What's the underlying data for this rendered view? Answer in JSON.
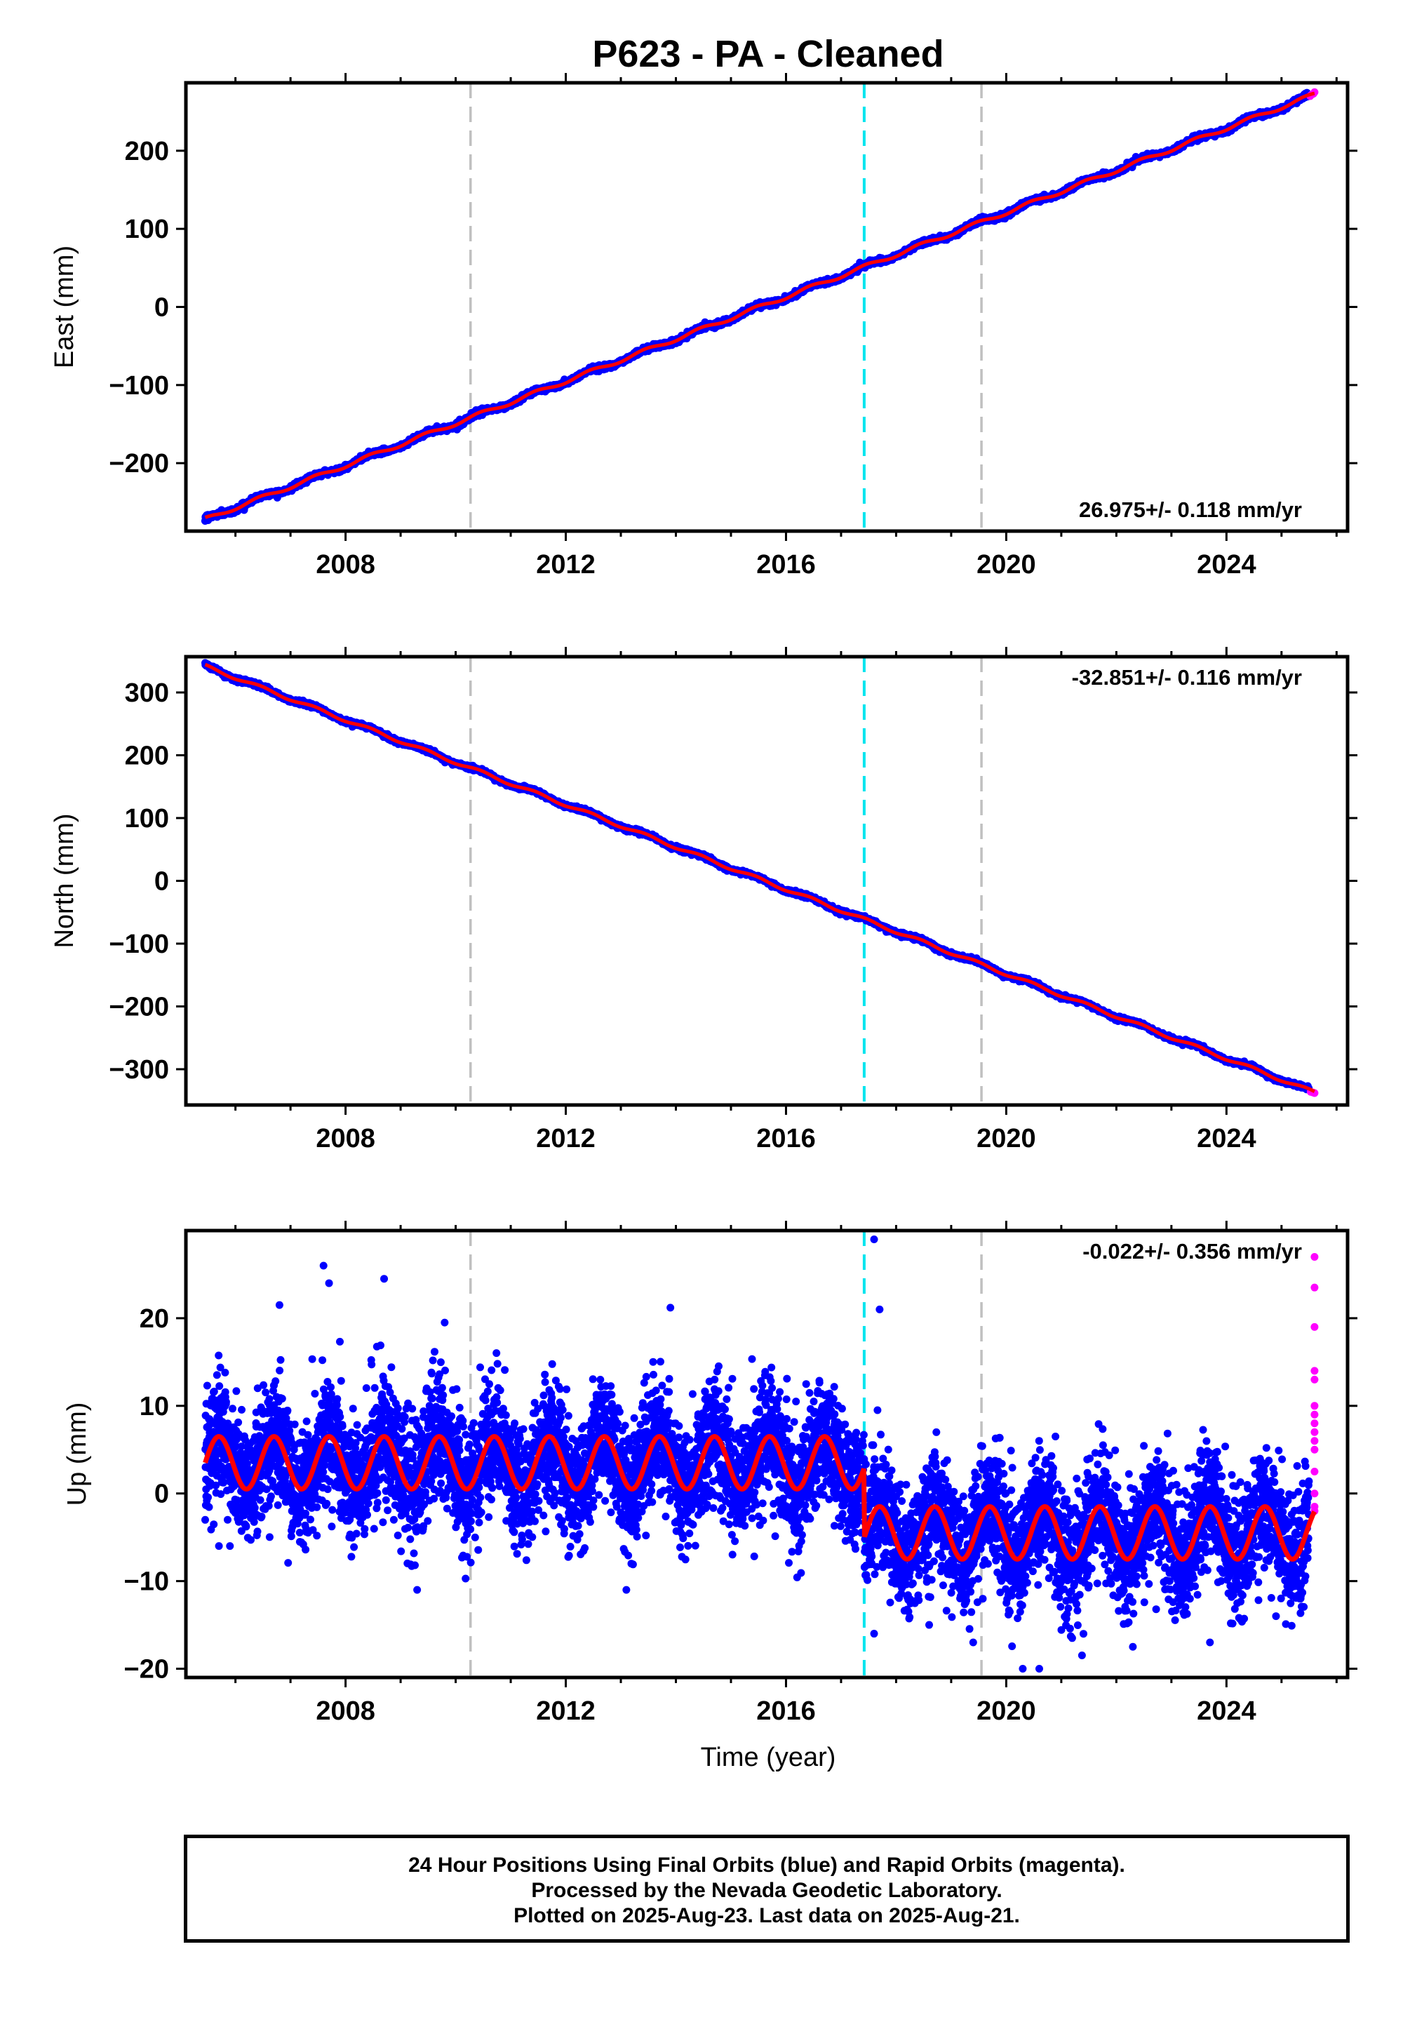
{
  "title": "P623  - PA - Cleaned",
  "xlabel": "Time (year)",
  "footer": {
    "line1": "24 Hour Positions Using Final Orbits (blue) and Rapid Orbits (magenta).",
    "line2": "Processed by the Nevada Geodetic Laboratory.",
    "line3": "Plotted on 2025-Aug-23. Last data on 2025-Aug-21."
  },
  "colors": {
    "final_points": "#0000ff",
    "rapid_points": "#ff00ff",
    "model_line": "#ff0000",
    "antenna_change_line": "#00e5ee",
    "other_event_line": "#c0c0c0"
  },
  "chart_data": [
    {
      "type": "scatter",
      "component": "East",
      "ylabel": "East (mm)",
      "rate_label": "26.975+/- 0.118 mm/yr",
      "xlim": [
        2005.1,
        2026.2
      ],
      "ylim": [
        -287,
        287
      ],
      "xticks": [
        2008,
        2012,
        2016,
        2020,
        2024
      ],
      "yticks": [
        -200,
        -100,
        0,
        100,
        200
      ],
      "events": [
        {
          "x": 2010.27,
          "kind": "other"
        },
        {
          "x": 2017.42,
          "kind": "antenna"
        },
        {
          "x": 2019.55,
          "kind": "other"
        }
      ],
      "model": {
        "rate_mm_per_yr": 26.975,
        "anchor": [
          [
            2005.45,
            -272
          ],
          [
            2025.6,
            272
          ]
        ],
        "annual_amplitude_mm": 2.5,
        "offsets": []
      },
      "final_series": {
        "x_start": 2005.45,
        "x_end": 2025.5,
        "scatter_sd_mm": 1.6,
        "outliers": []
      },
      "rapid_series": {
        "x": [
          2025.52,
          2025.55,
          2025.58,
          2025.6
        ],
        "y": [
          270,
          272,
          273,
          275
        ]
      }
    },
    {
      "type": "scatter",
      "component": "North",
      "ylabel": "North (mm)",
      "rate_label": "-32.851+/- 0.116 mm/yr",
      "xlim": [
        2005.1,
        2026.2
      ],
      "ylim": [
        -357,
        357
      ],
      "xticks": [
        2008,
        2012,
        2016,
        2020,
        2024
      ],
      "yticks": [
        -300,
        -200,
        -100,
        0,
        100,
        200,
        300
      ],
      "events": [
        {
          "x": 2010.27,
          "kind": "other"
        },
        {
          "x": 2017.42,
          "kind": "antenna"
        },
        {
          "x": 2019.55,
          "kind": "other"
        }
      ],
      "model": {
        "rate_mm_per_yr": -32.851,
        "anchor": [
          [
            2005.45,
            342
          ],
          [
            2025.6,
            -337
          ]
        ],
        "annual_amplitude_mm": 2.5,
        "offsets": []
      },
      "final_series": {
        "x_start": 2005.45,
        "x_end": 2025.5,
        "scatter_sd_mm": 1.6,
        "outliers": []
      },
      "rapid_series": {
        "x": [
          2025.53,
          2025.57,
          2025.6
        ],
        "y": [
          -336,
          -337,
          -338
        ]
      }
    },
    {
      "type": "scatter",
      "component": "Up",
      "ylabel": "Up (mm)",
      "rate_label": "-0.022+/- 0.356 mm/yr",
      "xlim": [
        2005.1,
        2026.2
      ],
      "ylim": [
        -21,
        30
      ],
      "xticks": [
        2008,
        2012,
        2016,
        2020,
        2024
      ],
      "yticks": [
        -20,
        -10,
        0,
        10,
        20
      ],
      "events": [
        {
          "x": 2010.27,
          "kind": "other"
        },
        {
          "x": 2017.42,
          "kind": "antenna"
        },
        {
          "x": 2019.55,
          "kind": "other"
        }
      ],
      "model": {
        "segments": [
          {
            "x_start": 2005.45,
            "x_end": 2017.42,
            "mean_mm": 3.5,
            "annual_amplitude_mm": 3.0
          },
          {
            "x_start": 2017.42,
            "x_end": 2025.6,
            "mean_mm": -4.5,
            "annual_amplitude_mm": 3.0
          }
        ],
        "phase_peak_fraction_of_year": 0.7
      },
      "final_series": {
        "x_start": 2005.45,
        "x_end": 2025.5,
        "scatter_sd_mm": 3.4,
        "outliers": [
          {
            "x": 2007.6,
            "y": 26
          },
          {
            "x": 2007.7,
            "y": 24
          },
          {
            "x": 2008.7,
            "y": 24.5
          },
          {
            "x": 2006.8,
            "y": 21.5
          },
          {
            "x": 2013.9,
            "y": 21.2
          },
          {
            "x": 2009.8,
            "y": 19.5
          },
          {
            "x": 2017.6,
            "y": 29
          },
          {
            "x": 2017.7,
            "y": 21
          },
          {
            "x": 2009.3,
            "y": -11
          },
          {
            "x": 2013.1,
            "y": -11
          },
          {
            "x": 2017.6,
            "y": -16
          },
          {
            "x": 2019.4,
            "y": -17
          },
          {
            "x": 2020.3,
            "y": -20
          },
          {
            "x": 2020.6,
            "y": -20
          },
          {
            "x": 2022.3,
            "y": -17.5
          },
          {
            "x": 2023.7,
            "y": -17
          },
          {
            "x": 2024.9,
            "y": -14
          },
          {
            "x": 2018.6,
            "y": -15
          },
          {
            "x": 2005.7,
            "y": -6
          },
          {
            "x": 2005.9,
            "y": -6
          }
        ]
      },
      "rapid_series": {
        "x": [
          2025.6,
          2025.6,
          2025.6,
          2025.6,
          2025.6,
          2025.6,
          2025.6,
          2025.6,
          2025.6,
          2025.6,
          2025.6,
          2025.6,
          2025.6,
          2025.6,
          2025.6
        ],
        "y": [
          27,
          23.5,
          19,
          14,
          13,
          10,
          9,
          8,
          7,
          6,
          5,
          2.5,
          0,
          -1.5,
          -2
        ]
      }
    }
  ]
}
